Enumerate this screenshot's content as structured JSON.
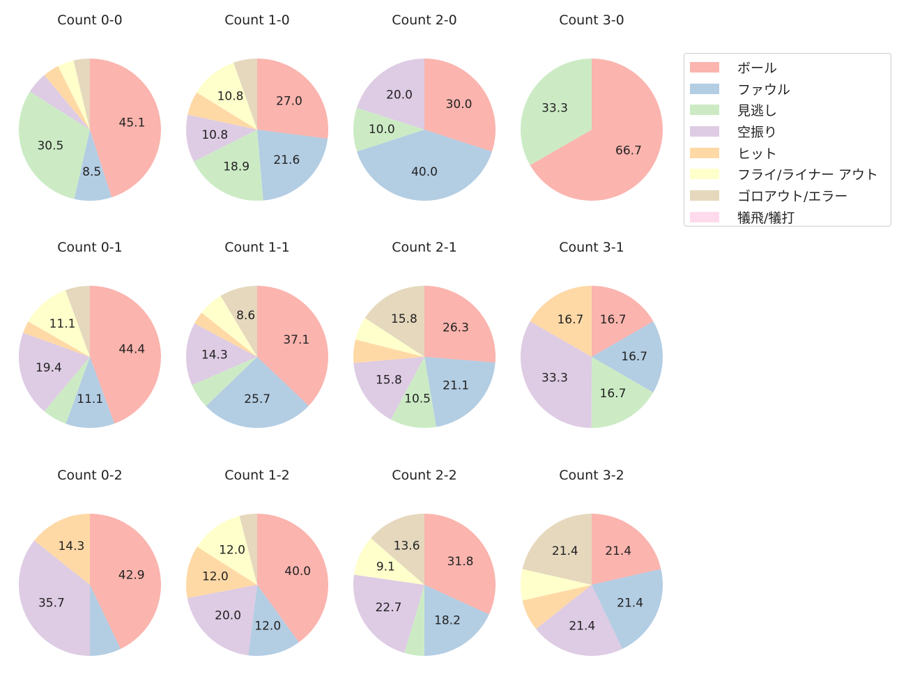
{
  "chart_data": {
    "type": "pie",
    "legend": {
      "placement": "top-right",
      "entries": [
        "ボール",
        "ファウル",
        "見逃し",
        "空振り",
        "ヒット",
        "フライ/ライナー アウト",
        "ゴロアウト/エラー",
        "犠飛/犠打"
      ]
    },
    "colors": [
      "#fbb4ae",
      "#b3cde3",
      "#ccebc5",
      "#decbe4",
      "#fed9a6",
      "#ffffcc",
      "#e5d8bd",
      "#fddaec"
    ],
    "start_angle": "top",
    "direction": "clockwise",
    "pies": [
      {
        "title": "Count 0-0",
        "values": [
          45.1,
          8.5,
          30.5,
          4.9,
          3.7,
          3.7,
          3.7,
          0
        ]
      },
      {
        "title": "Count 1-0",
        "values": [
          27.0,
          21.6,
          18.9,
          10.8,
          5.4,
          10.8,
          5.4,
          0
        ]
      },
      {
        "title": "Count 2-0",
        "values": [
          30.0,
          40.0,
          10.0,
          20.0,
          0,
          0,
          0,
          0
        ]
      },
      {
        "title": "Count 3-0",
        "values": [
          66.7,
          0,
          33.3,
          0,
          0,
          0,
          0,
          0
        ]
      },
      {
        "title": "Count 0-1",
        "values": [
          44.4,
          11.1,
          5.6,
          19.4,
          2.8,
          11.1,
          5.6,
          0
        ]
      },
      {
        "title": "Count 1-1",
        "values": [
          37.1,
          25.7,
          5.7,
          14.3,
          2.9,
          5.7,
          8.6,
          0
        ]
      },
      {
        "title": "Count 2-1",
        "values": [
          26.3,
          21.1,
          10.5,
          15.8,
          5.3,
          5.3,
          15.8,
          0
        ]
      },
      {
        "title": "Count 3-1",
        "values": [
          16.7,
          16.7,
          16.7,
          33.3,
          16.7,
          0,
          0,
          0
        ]
      },
      {
        "title": "Count 0-2",
        "values": [
          42.9,
          7.1,
          0,
          35.7,
          14.3,
          0,
          0,
          0
        ]
      },
      {
        "title": "Count 1-2",
        "values": [
          40.0,
          12.0,
          0,
          20.0,
          12.0,
          12.0,
          4.0,
          0
        ]
      },
      {
        "title": "Count 2-2",
        "values": [
          31.8,
          18.2,
          4.5,
          22.7,
          0,
          9.1,
          13.6,
          0
        ]
      },
      {
        "title": "Count 3-2",
        "values": [
          21.4,
          21.4,
          0,
          21.4,
          7.1,
          7.1,
          21.4,
          0
        ]
      }
    ]
  }
}
